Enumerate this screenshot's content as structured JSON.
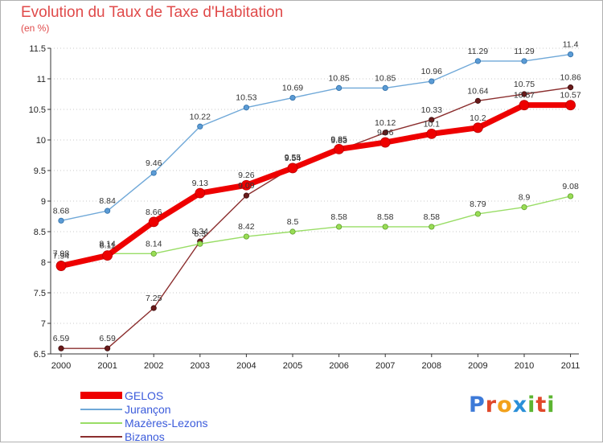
{
  "header": {
    "title": "Evolution du Taux de Taxe d'Habitation",
    "subtitle": "(en %)"
  },
  "chart_data": {
    "type": "line",
    "x": [
      "2000",
      "2001",
      "2002",
      "2003",
      "2004",
      "2005",
      "2006",
      "2007",
      "2008",
      "2009",
      "2010",
      "2011"
    ],
    "ylim": [
      6.5,
      11.5
    ],
    "yticks": [
      "6.5",
      "7",
      "7.5",
      "8",
      "8.5",
      "9",
      "9.5",
      "10",
      "10.5",
      "11",
      "11.5"
    ],
    "grid": "horizontal-dotted",
    "legend_position": "bottom-left",
    "series": [
      {
        "name": "GELOS",
        "color": "#ee0000",
        "values": [
          7.94,
          8.11,
          8.66,
          9.13,
          9.26,
          9.54,
          9.85,
          9.96,
          10.1,
          10.2,
          10.57,
          10.57
        ]
      },
      {
        "name": "Jurançon",
        "color": "#6fa8d8",
        "values": [
          8.68,
          8.84,
          9.46,
          10.22,
          10.53,
          10.69,
          10.85,
          10.85,
          10.96,
          11.29,
          11.29,
          11.4
        ]
      },
      {
        "name": "Mazères-Lezons",
        "color": "#99dd66",
        "values": [
          7.98,
          8.14,
          8.14,
          8.3,
          8.42,
          8.5,
          8.58,
          8.58,
          8.58,
          8.79,
          8.9,
          9.08
        ]
      },
      {
        "name": "Bizanos",
        "color": "#8b2e2e",
        "values": [
          6.59,
          6.59,
          7.25,
          8.34,
          9.09,
          9.55,
          9.83,
          10.12,
          10.33,
          10.64,
          10.75,
          10.86
        ]
      }
    ]
  },
  "legend": {
    "items": [
      "GELOS",
      "Jurançon",
      "Mazères-Lezons",
      "Bizanos"
    ]
  },
  "logo": {
    "letters": [
      "P",
      "r",
      "o",
      "x",
      "i",
      "t",
      "i"
    ],
    "colors": [
      "#3d7ad8",
      "#e0482a",
      "#f2a11b",
      "#2a8fd8",
      "#5cb531",
      "#e0482a",
      "#5cb531"
    ]
  }
}
